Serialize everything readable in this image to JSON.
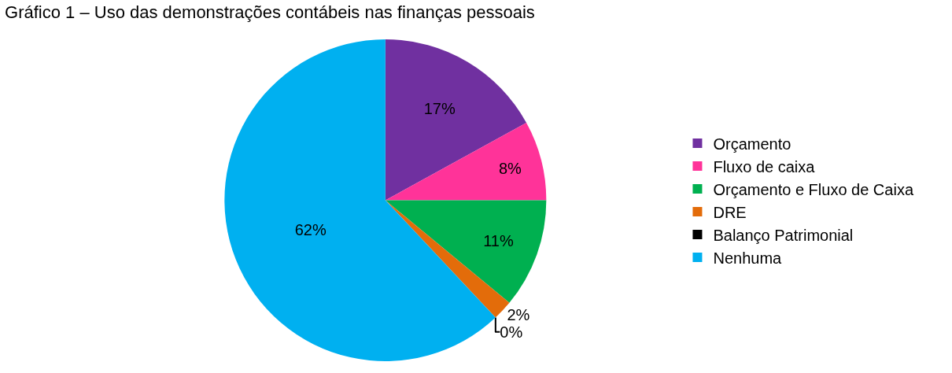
{
  "chart_data": {
    "type": "pie",
    "title": "Gráfico 1 – Uso das demonstrações contábeis nas finanças pessoais",
    "categories": [
      "Orçamento",
      "Fluxo de caixa",
      "Orçamento e Fluxo de Caixa",
      "DRE",
      "Balanço Patrimonial",
      "Nenhuma"
    ],
    "values": [
      17,
      8,
      11,
      2,
      0,
      62
    ],
    "value_labels": [
      "17%",
      "8%",
      "11%",
      "2%",
      "0%",
      "62%"
    ],
    "colors": [
      "#7030a0",
      "#ff3399",
      "#00b050",
      "#e36c0a",
      "#000000",
      "#00b0f0"
    ],
    "legend": "right"
  }
}
